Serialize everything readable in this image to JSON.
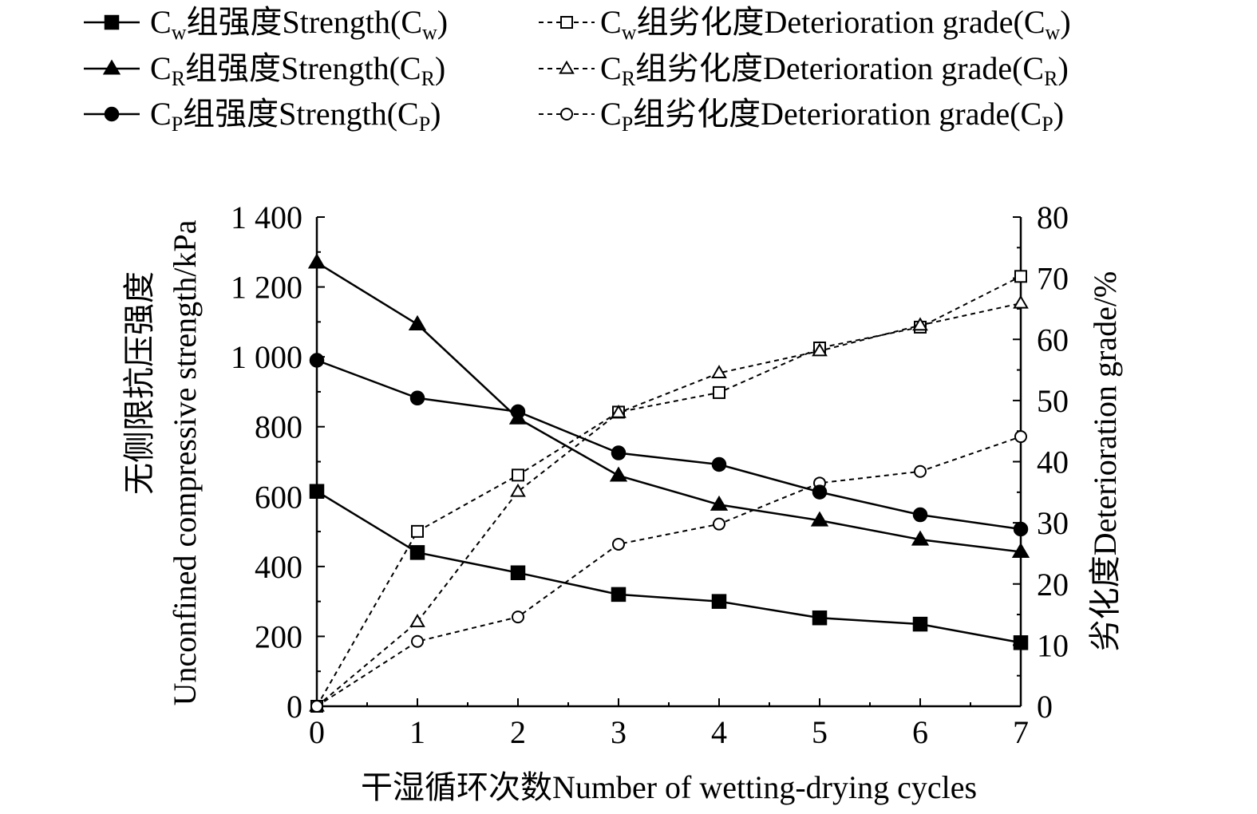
{
  "chart_data": {
    "type": "line",
    "x": [
      0,
      1,
      2,
      3,
      4,
      5,
      6,
      7
    ],
    "xlabel": "干湿循环次数Number of wetting-drying cycles",
    "ylabel_cn": "无侧限抗压强度",
    "ylabel_en": "Unconfined compressive strength/kPa",
    "y2label": "劣化度Deterioration grade/%",
    "xlim": [
      0,
      7
    ],
    "ylim": [
      0,
      1400
    ],
    "y2lim": [
      0,
      80
    ],
    "x_ticks": [
      "0",
      "1",
      "2",
      "3",
      "4",
      "5",
      "6",
      "7"
    ],
    "y_ticks": [
      "0",
      "200",
      "400",
      "600",
      "800",
      "1 000",
      "1 200",
      "1 400"
    ],
    "y2_ticks": [
      "0",
      "10",
      "20",
      "30",
      "40",
      "50",
      "60",
      "70",
      "80"
    ],
    "grid": false,
    "legend_position": "top",
    "series": [
      {
        "id": "strength-cw",
        "legend": {
          "pre": "C",
          "sub": "w",
          "mid": "组强度Strength(C",
          "sub2": "w",
          "post": ")"
        },
        "axis": "left",
        "marker": "square",
        "filled": true,
        "dashed": false,
        "values": [
          615,
          440,
          382,
          320,
          300,
          253,
          235,
          182
        ]
      },
      {
        "id": "strength-cr",
        "legend": {
          "pre": "C",
          "sub": "R",
          "mid": "组强度Strength(C",
          "sub2": "R",
          "post": ")"
        },
        "axis": "left",
        "marker": "triangle",
        "filled": true,
        "dashed": false,
        "values": [
          1270,
          1093,
          824,
          660,
          577,
          532,
          477,
          442
        ]
      },
      {
        "id": "strength-cp",
        "legend": {
          "pre": "C",
          "sub": "P",
          "mid": "组强度Strength(C",
          "sub2": "P",
          "post": ")"
        },
        "axis": "left",
        "marker": "circle",
        "filled": true,
        "dashed": false,
        "values": [
          990,
          882,
          843,
          725,
          692,
          613,
          548,
          507
        ]
      },
      {
        "id": "deterioration-cw",
        "legend": {
          "pre": "C",
          "sub": "w",
          "mid": "组劣化度Deterioration grade(C",
          "sub2": "w",
          "post": ")"
        },
        "axis": "right",
        "marker": "square",
        "filled": false,
        "dashed": true,
        "values": [
          0,
          28.6,
          37.8,
          48.1,
          51.3,
          58.6,
          62.0,
          70.3
        ]
      },
      {
        "id": "deterioration-cr",
        "legend": {
          "pre": "C",
          "sub": "R",
          "mid": "组劣化度Deterioration grade(C",
          "sub2": "R",
          "post": ")"
        },
        "axis": "right",
        "marker": "triangle",
        "filled": false,
        "dashed": true,
        "values": [
          0,
          13.8,
          35.1,
          48.0,
          54.5,
          58.1,
          62.3,
          65.9
        ]
      },
      {
        "id": "deterioration-cp",
        "legend": {
          "pre": "C",
          "sub": "P",
          "mid": "组劣化度Deterioration grade(C",
          "sub2": "P",
          "post": ")"
        },
        "axis": "right",
        "marker": "circle",
        "filled": false,
        "dashed": true,
        "values": [
          0,
          10.6,
          14.6,
          26.5,
          29.8,
          36.5,
          38.4,
          44.1
        ]
      }
    ]
  }
}
